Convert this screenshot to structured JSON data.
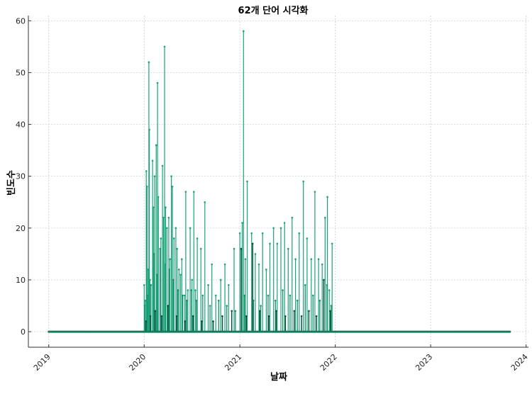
{
  "chart_data": {
    "type": "line",
    "title": "62개 단어 시각화",
    "xlabel": "날짜",
    "ylabel": "빈도수",
    "x_ticks": [
      "2019",
      "2020",
      "2021",
      "2022",
      "2023",
      "2024"
    ],
    "y_ticks": [
      "0",
      "10",
      "20",
      "30",
      "40",
      "50",
      "60"
    ],
    "xlim": [
      "2018-10-15",
      "2024-01-10"
    ],
    "ylim": [
      -3,
      61
    ],
    "grid": true,
    "colors": {
      "bright": "#1aa37a",
      "mid": "#17916c",
      "dark": "#0b4f3a",
      "baseline": "#157a5b"
    },
    "baseline": {
      "from": "2019-01-01",
      "to": "2023-10-31",
      "value": 0
    },
    "series": [
      {
        "style": "bright",
        "points": [
          [
            "2020-01-01",
            9
          ],
          [
            "2020-01-05",
            6
          ],
          [
            "2020-01-09",
            31
          ],
          [
            "2020-01-12",
            28
          ],
          [
            "2020-01-16",
            12
          ],
          [
            "2020-01-19",
            52
          ],
          [
            "2020-01-21",
            39
          ],
          [
            "2020-01-23",
            10
          ],
          [
            "2020-02-02",
            33
          ],
          [
            "2020-02-05",
            24
          ],
          [
            "2020-02-10",
            30
          ],
          [
            "2020-02-16",
            36
          ],
          [
            "2020-02-21",
            48
          ],
          [
            "2020-02-24",
            26
          ],
          [
            "2020-03-05",
            18
          ],
          [
            "2020-03-11",
            32
          ],
          [
            "2020-03-15",
            22
          ],
          [
            "2020-03-19",
            55
          ],
          [
            "2020-03-23",
            24
          ],
          [
            "2020-03-28",
            20
          ],
          [
            "2020-04-04",
            22
          ],
          [
            "2020-04-09",
            14
          ],
          [
            "2020-04-14",
            30
          ],
          [
            "2020-04-18",
            28
          ],
          [
            "2020-04-24",
            18
          ],
          [
            "2020-05-01",
            20
          ],
          [
            "2020-05-06",
            16
          ],
          [
            "2020-05-13",
            12
          ],
          [
            "2020-05-19",
            11
          ],
          [
            "2020-05-24",
            14
          ],
          [
            "2020-06-03",
            7
          ],
          [
            "2020-06-08",
            27
          ],
          [
            "2020-06-16",
            8
          ],
          [
            "2020-06-25",
            20
          ],
          [
            "2020-07-02",
            10
          ],
          [
            "2020-07-09",
            27
          ],
          [
            "2020-07-15",
            8
          ],
          [
            "2020-07-22",
            18
          ],
          [
            "2020-08-05",
            16
          ],
          [
            "2020-08-20",
            25
          ],
          [
            "2020-09-02",
            9
          ],
          [
            "2020-09-16",
            13
          ],
          [
            "2020-10-01",
            7
          ],
          [
            "2020-10-20",
            10
          ],
          [
            "2020-11-05",
            13
          ],
          [
            "2020-11-19",
            9
          ],
          [
            "2020-12-10",
            16
          ],
          [
            "2021-01-01",
            19
          ],
          [
            "2021-01-10",
            21
          ],
          [
            "2021-01-15",
            58
          ],
          [
            "2021-01-22",
            14
          ],
          [
            "2021-01-29",
            29
          ],
          [
            "2021-02-15",
            19
          ],
          [
            "2021-03-01",
            15
          ],
          [
            "2021-03-15",
            13
          ],
          [
            "2021-03-29",
            19
          ],
          [
            "2021-04-12",
            12
          ],
          [
            "2021-04-26",
            17
          ],
          [
            "2021-05-10",
            20
          ],
          [
            "2021-05-24",
            17
          ],
          [
            "2021-06-07",
            20
          ],
          [
            "2021-06-21",
            21
          ],
          [
            "2021-07-05",
            16
          ],
          [
            "2021-07-20",
            22
          ],
          [
            "2021-08-02",
            14
          ],
          [
            "2021-08-16",
            19
          ],
          [
            "2021-09-01",
            29
          ],
          [
            "2021-09-15",
            18
          ],
          [
            "2021-10-01",
            14
          ],
          [
            "2021-10-15",
            27
          ],
          [
            "2021-10-29",
            14
          ],
          [
            "2021-11-12",
            13
          ],
          [
            "2021-11-23",
            22
          ],
          [
            "2021-12-02",
            26
          ],
          [
            "2021-12-09",
            8
          ],
          [
            "2021-12-20",
            17
          ]
        ]
      },
      {
        "style": "mid",
        "points": [
          [
            "2020-01-03",
            5
          ],
          [
            "2020-01-13",
            7
          ],
          [
            "2020-01-27",
            9
          ],
          [
            "2020-02-08",
            15
          ],
          [
            "2020-02-19",
            11
          ],
          [
            "2020-03-02",
            16
          ],
          [
            "2020-03-21",
            13
          ],
          [
            "2020-04-06",
            12
          ],
          [
            "2020-04-21",
            10
          ],
          [
            "2020-05-09",
            8
          ],
          [
            "2020-05-27",
            7
          ],
          [
            "2020-06-12",
            6
          ],
          [
            "2020-06-30",
            8
          ],
          [
            "2020-07-19",
            6
          ],
          [
            "2020-08-12",
            7
          ],
          [
            "2020-09-09",
            5
          ],
          [
            "2020-10-12",
            6
          ],
          [
            "2020-11-12",
            5
          ],
          [
            "2020-12-15",
            4
          ],
          [
            "2021-01-19",
            7
          ],
          [
            "2021-02-22",
            6
          ],
          [
            "2021-03-22",
            5
          ],
          [
            "2021-04-19",
            7
          ],
          [
            "2021-05-17",
            6
          ],
          [
            "2021-06-14",
            8
          ],
          [
            "2021-07-12",
            7
          ],
          [
            "2021-08-09",
            6
          ],
          [
            "2021-09-08",
            9
          ],
          [
            "2021-10-08",
            7
          ],
          [
            "2021-11-03",
            6
          ],
          [
            "2021-11-30",
            9
          ],
          [
            "2021-12-16",
            5
          ]
        ]
      },
      {
        "style": "dark",
        "points": [
          [
            "2020-01-08",
            2
          ],
          [
            "2020-01-25",
            3
          ],
          [
            "2020-02-12",
            4
          ],
          [
            "2020-03-08",
            3
          ],
          [
            "2020-04-01",
            5
          ],
          [
            "2020-05-04",
            3
          ],
          [
            "2020-06-05",
            2
          ],
          [
            "2020-07-06",
            3
          ],
          [
            "2020-08-08",
            2
          ],
          [
            "2020-09-21",
            2
          ],
          [
            "2020-10-26",
            3
          ],
          [
            "2020-12-01",
            4
          ],
          [
            "2021-01-06",
            16
          ],
          [
            "2021-01-26",
            3
          ],
          [
            "2021-02-19",
            17
          ],
          [
            "2021-03-18",
            4
          ],
          [
            "2021-04-22",
            3
          ],
          [
            "2021-05-20",
            4
          ],
          [
            "2021-06-24",
            3
          ],
          [
            "2021-07-28",
            4
          ],
          [
            "2021-08-25",
            3
          ],
          [
            "2021-09-22",
            4
          ],
          [
            "2021-10-21",
            3
          ],
          [
            "2021-11-18",
            10
          ],
          [
            "2021-12-13",
            4
          ]
        ]
      }
    ]
  }
}
